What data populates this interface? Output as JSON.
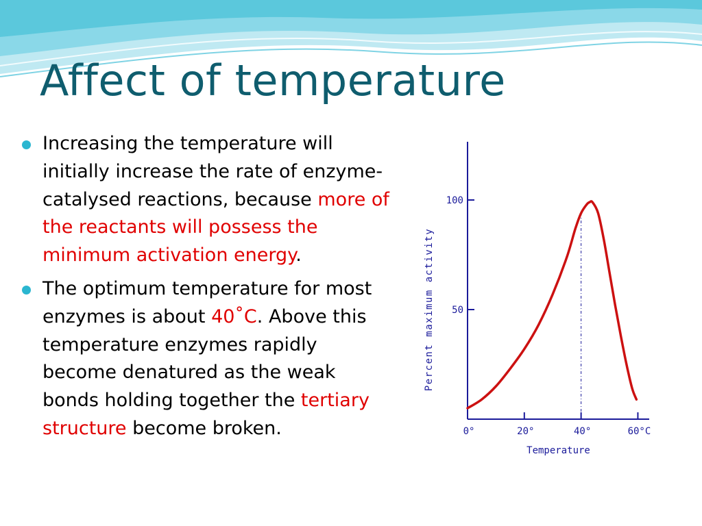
{
  "slide": {
    "title": "Affect of temperature",
    "colors": {
      "title": "#0f5d6e",
      "bullet": "#2bb6d0",
      "highlight": "#e00000",
      "wave_top": "#5bc8dc",
      "wave_light": "#bfe9f2"
    },
    "bullets": [
      {
        "segments": [
          {
            "text": "Increasing the temperature will initially increase the rate of enzyme-catalysed reactions, because ",
            "highlight": false
          },
          {
            "text": "more of the reactants will possess the minimum activation energy",
            "highlight": true
          },
          {
            "text": ".",
            "highlight": false
          }
        ]
      },
      {
        "segments": [
          {
            "text": "The optimum temperature for most enzymes is about ",
            "highlight": false
          },
          {
            "text": "40˚C",
            "highlight": true
          },
          {
            "text": ". Above this temperature enzymes rapidly become denatured as the weak bonds holding together the ",
            "highlight": false
          },
          {
            "text": "tertiary structure",
            "highlight": true
          },
          {
            "text": " become broken.",
            "highlight": false
          }
        ]
      }
    ]
  },
  "chart_data": {
    "type": "line",
    "xlabel": "Temperature",
    "ylabel": "Percent maximum activity",
    "xlim": [
      0,
      64
    ],
    "ylim": [
      0,
      125
    ],
    "x_ticks": [
      0,
      20,
      40,
      60
    ],
    "x_tick_labels": [
      "0°",
      "20°",
      "40°",
      "60°C"
    ],
    "y_ticks": [
      50,
      100
    ],
    "y_tick_labels": [
      "50",
      "100"
    ],
    "grid": false,
    "series": [
      {
        "color": "#cc1111",
        "x": [
          0,
          5,
          10,
          15,
          20,
          25,
          30,
          35,
          38,
          40,
          42,
          43,
          44,
          46,
          48,
          50,
          52,
          54,
          56,
          58,
          59.5
        ],
        "y": [
          5,
          9,
          15,
          23,
          32,
          43,
          57,
          74,
          87,
          94,
          98,
          99,
          99,
          94,
          82,
          67,
          52,
          38,
          25,
          14,
          9
        ]
      }
    ],
    "annotations": [
      {
        "type": "vertical-dash-line",
        "x": 40,
        "y_from": 0,
        "y_to": 94,
        "color": "#1a1a9a"
      }
    ]
  }
}
